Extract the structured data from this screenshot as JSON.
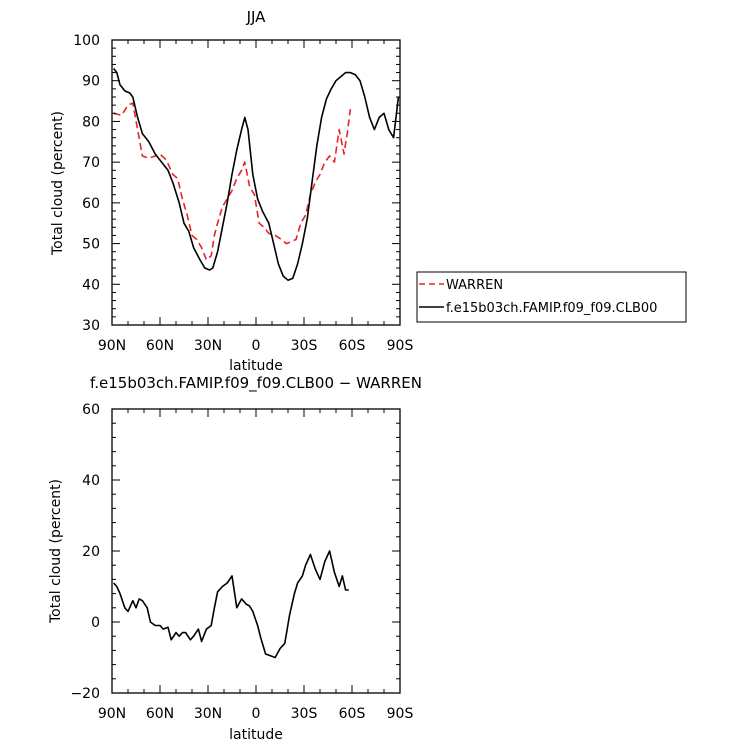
{
  "chart_data": [
    {
      "type": "line",
      "title": "JJA",
      "xlabel": "latitude",
      "ylabel": "Total cloud (percent)",
      "xlim": [
        90,
        -90
      ],
      "ylim": [
        30,
        100
      ],
      "xticks": [
        90,
        60,
        30,
        0,
        -30,
        -60,
        -90
      ],
      "xtick_labels": [
        "90N",
        "60N",
        "30N",
        "0",
        "30S",
        "60S",
        "90S"
      ],
      "yticks": [
        30,
        40,
        50,
        60,
        70,
        80,
        90,
        100
      ],
      "ytick_labels": [
        "30",
        "40",
        "50",
        "60",
        "70",
        "80",
        "90",
        "100"
      ],
      "grid": false,
      "legend_position": "right",
      "series": [
        {
          "name": "WARREN",
          "color": "#e8232a",
          "dash": "dashed",
          "x": [
            89,
            84,
            80,
            77,
            74,
            71,
            67,
            63,
            60,
            56,
            52,
            49,
            46,
            43,
            40,
            37,
            34,
            31,
            28,
            26,
            24,
            21,
            18,
            15,
            12,
            9,
            7,
            4,
            1,
            -2,
            -5,
            -8,
            -12,
            -16,
            -19,
            -22,
            -25,
            -28,
            -31,
            -34,
            -37,
            -40,
            -43,
            -46,
            -49,
            -52,
            -55,
            -57,
            -59
          ],
          "y": [
            82,
            81.5,
            84,
            84.5,
            78,
            71.5,
            71,
            71.5,
            72,
            70.5,
            67,
            66,
            61,
            57,
            52,
            51,
            49,
            46,
            47,
            52,
            55,
            59,
            61,
            63,
            66,
            68,
            70,
            64,
            62,
            55,
            54,
            52.5,
            52,
            51,
            50,
            50.5,
            51,
            55,
            57,
            62,
            65,
            67,
            70,
            71.5,
            70,
            78,
            72,
            77,
            83
          ]
        },
        {
          "name": "f.e15b03ch.FAMIP.f09_f09.CLB00",
          "color": "#000000",
          "dash": "solid",
          "x": [
            89,
            87,
            85,
            82,
            79,
            77,
            74,
            71,
            67,
            63,
            59,
            55,
            52,
            48,
            45,
            42,
            39,
            35,
            32,
            29,
            27,
            24,
            21,
            18,
            15,
            12,
            9,
            7,
            5,
            2,
            -1,
            -4,
            -8,
            -11,
            -14,
            -17,
            -20,
            -23,
            -26,
            -29,
            -32,
            -35,
            -38,
            -41,
            -44,
            -47,
            -50,
            -53,
            -56,
            -59,
            -62,
            -65,
            -68,
            -71,
            -74,
            -77,
            -80,
            -83,
            -86,
            -89
          ],
          "y": [
            93,
            92,
            89,
            87.5,
            87,
            86,
            81,
            77,
            75,
            72,
            70,
            68,
            65,
            60,
            55,
            53,
            49,
            46,
            44,
            43.5,
            44,
            48,
            54,
            60,
            67,
            73,
            78,
            81,
            78,
            67,
            61,
            58,
            55,
            50,
            45,
            42,
            41,
            41.5,
            45,
            50,
            56,
            65,
            74,
            81,
            85.5,
            88,
            90,
            91,
            92,
            92,
            91.5,
            90,
            86,
            81,
            78,
            81,
            82,
            78,
            76,
            86
          ]
        }
      ]
    },
    {
      "type": "line",
      "title": "f.e15b03ch.FAMIP.f09_f09.CLB00 − WARREN",
      "xlabel": "latitude",
      "ylabel": "Total cloud (percent)",
      "xlim": [
        90,
        -90
      ],
      "ylim": [
        -20,
        60
      ],
      "xticks": [
        90,
        60,
        30,
        0,
        -30,
        -60,
        -90
      ],
      "xtick_labels": [
        "90N",
        "60N",
        "30N",
        "0",
        "30S",
        "60S",
        "90S"
      ],
      "yticks": [
        -20,
        0,
        20,
        40,
        60
      ],
      "ytick_labels": [
        "−20",
        "0",
        "20",
        "40",
        "60"
      ],
      "grid": false,
      "series": [
        {
          "color": "#000000",
          "dash": "solid",
          "x": [
            89,
            87,
            85,
            82,
            80,
            77,
            75,
            73,
            71,
            68,
            66,
            63,
            60,
            58,
            55,
            53,
            50,
            48,
            46,
            44,
            41,
            39,
            36,
            34,
            31,
            28,
            26,
            24,
            21,
            18,
            15,
            12,
            9,
            6,
            4,
            2,
            -1,
            -3,
            -6,
            -9,
            -12,
            -15,
            -18,
            -21,
            -24,
            -26,
            -29,
            -31,
            -34,
            -37,
            -40,
            -43,
            -46,
            -49,
            -52,
            -54,
            -56,
            -58
          ],
          "y": [
            11,
            10,
            8,
            4,
            3,
            6,
            4,
            6.5,
            6,
            4,
            0,
            -1,
            -1,
            -2,
            -1.5,
            -5,
            -3,
            -4,
            -3,
            -3,
            -5,
            -4,
            -2,
            -5.5,
            -2,
            -1,
            4,
            8.5,
            10,
            11,
            13,
            4,
            6.5,
            5,
            4.5,
            3,
            -1,
            -4.5,
            -9,
            -9.5,
            -10,
            -7.5,
            -6,
            2,
            8,
            11,
            13,
            16,
            19,
            15,
            12,
            17,
            20,
            14,
            10,
            13,
            9,
            9
          ]
        }
      ]
    }
  ],
  "legend": {
    "items": [
      {
        "label": "WARREN",
        "color": "#e8232a",
        "dash": "dashed"
      },
      {
        "label": "f.e15b03ch.FAMIP.f09_f09.CLB00",
        "color": "#000000",
        "dash": "solid"
      }
    ]
  }
}
